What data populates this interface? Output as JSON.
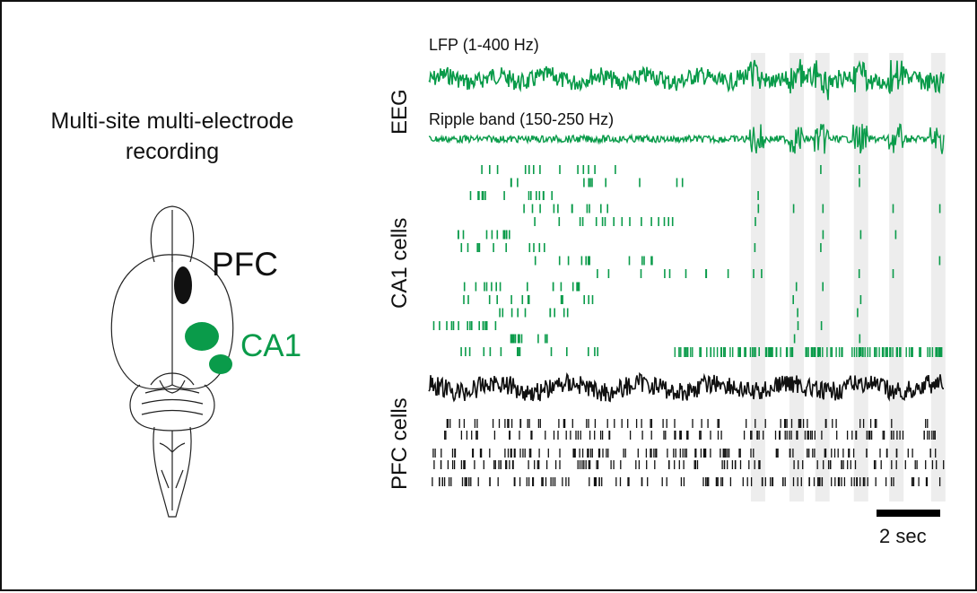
{
  "figure": {
    "title": "Multi-site multi-electrode recording",
    "colors": {
      "ca1": "#0a9b4a",
      "pfc": "#111111",
      "highlight": "#ededed"
    }
  },
  "brain": {
    "regions": [
      {
        "name": "PFC",
        "color": "#111111"
      },
      {
        "name": "CA1",
        "color": "#0a9b4a"
      }
    ]
  },
  "labels": {
    "eeg": "EEG",
    "lfp": "LFP (1-400 Hz)",
    "ripple": "Ripple band (150-250 Hz)",
    "ca1_cells": "CA1 cells",
    "pfc_cells": "PFC cells"
  },
  "scale_bar": {
    "label": "2 sec",
    "seconds": 2
  },
  "chart_data": {
    "type": "line",
    "time_range_sec": [
      0,
      16
    ],
    "ripple_event_times_sec": [
      10.2,
      11.4,
      12.2,
      13.4,
      14.5,
      15.8
    ],
    "ca1_cell_count": 15,
    "pfc_cell_count": 6
  }
}
